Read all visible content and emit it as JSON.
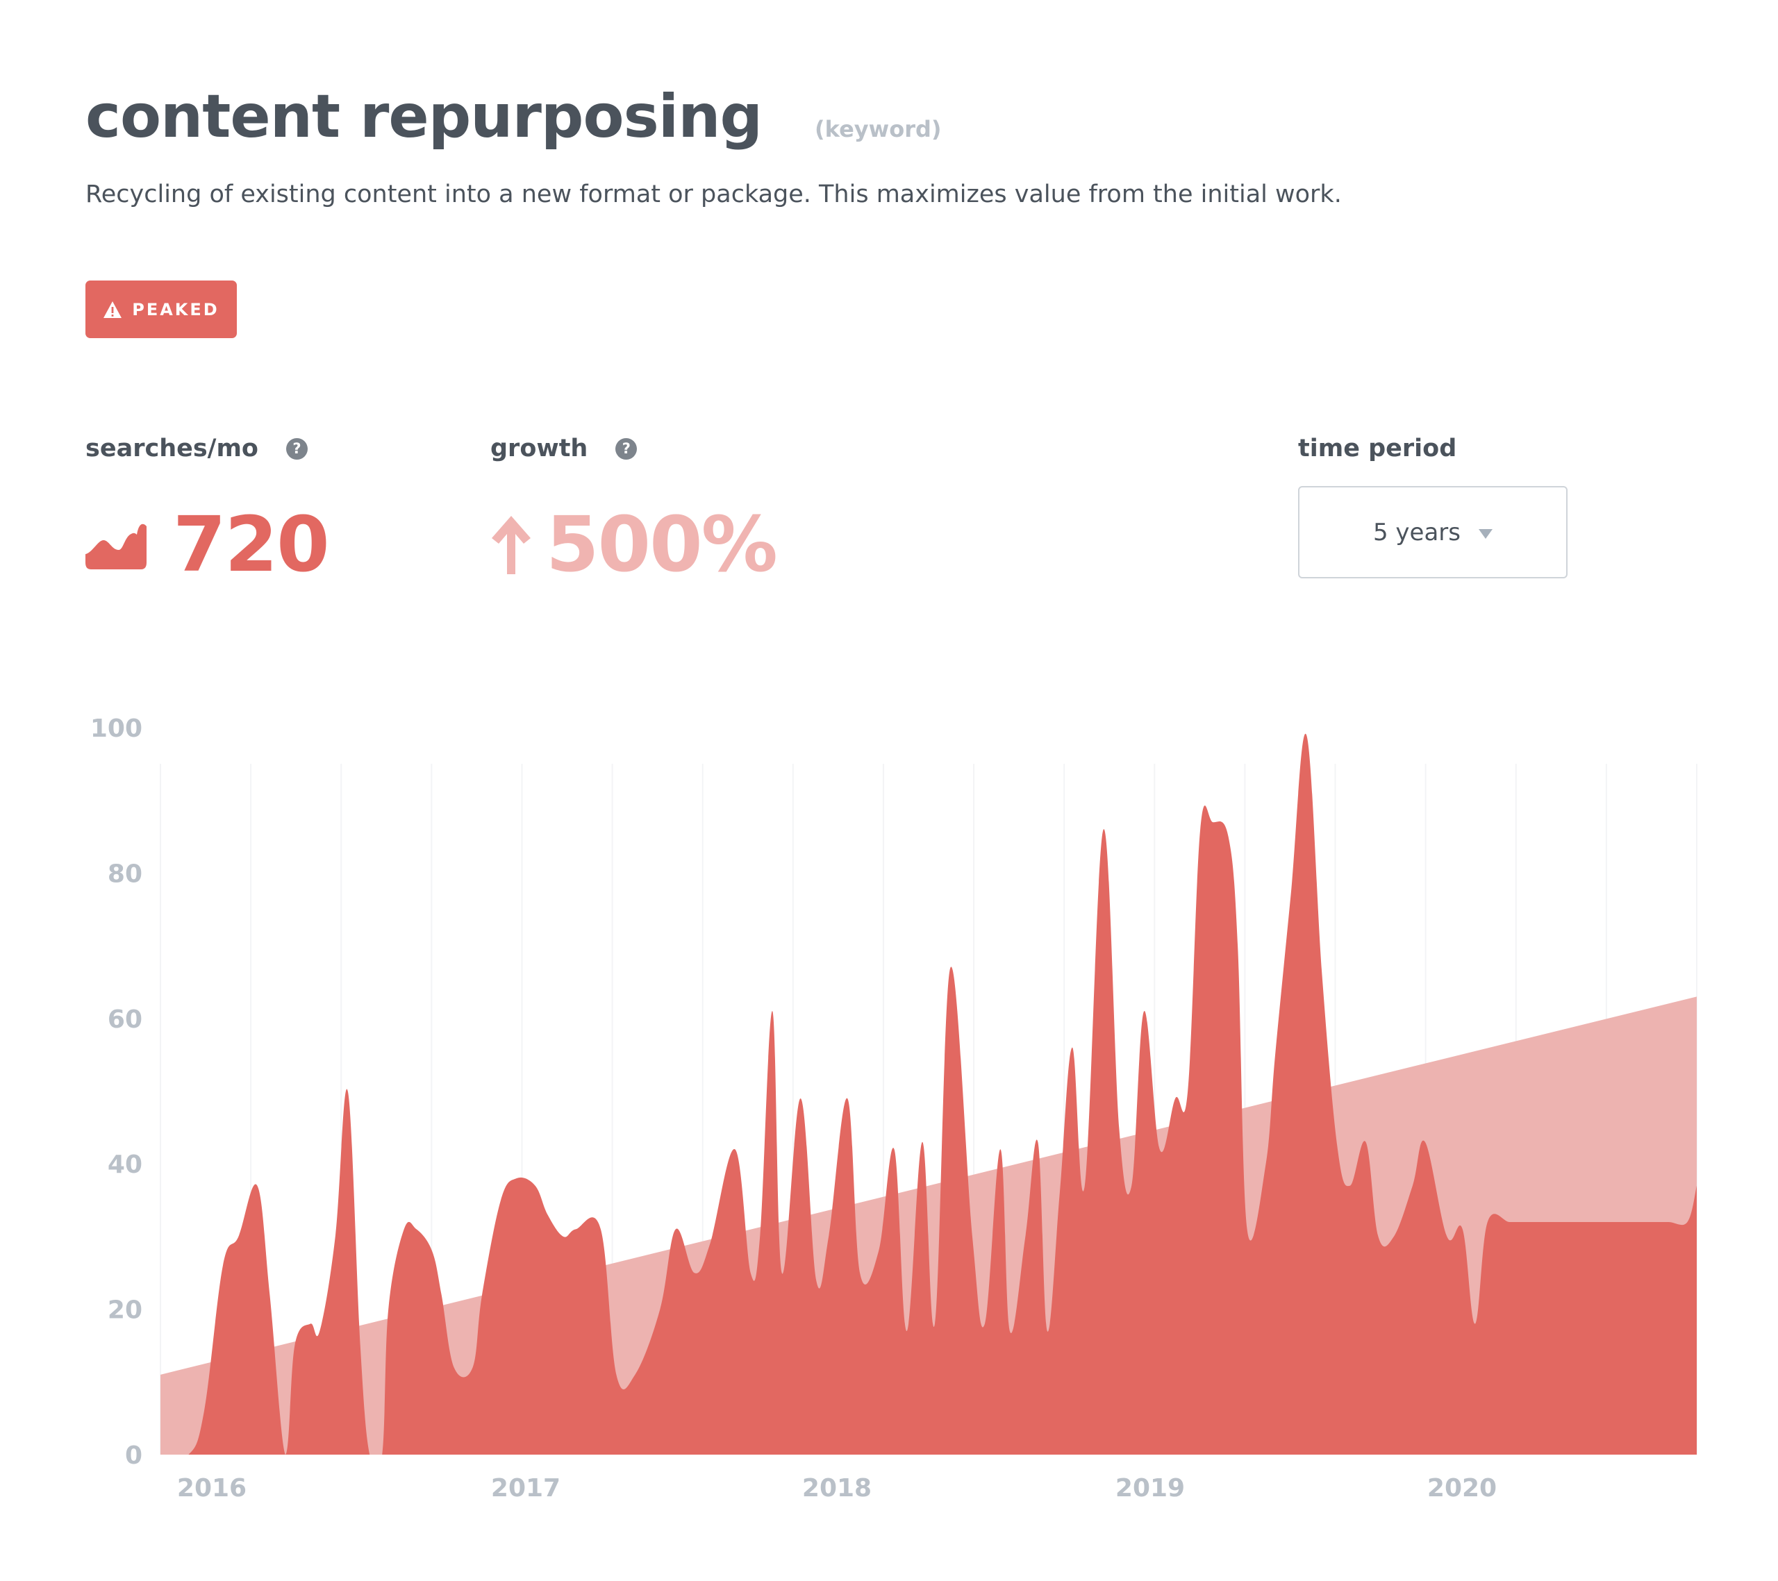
{
  "header": {
    "title": "content repurposing",
    "kind": "(keyword)",
    "description": "Recycling of existing content into a new format or package. This maximizes value from the initial work."
  },
  "badge": {
    "label": "PEAKED",
    "icon": "warning-icon",
    "color": "#e26861"
  },
  "stats": {
    "searches": {
      "label": "searches/mo",
      "value": "720",
      "icon": "volume-chart-icon"
    },
    "growth": {
      "label": "growth",
      "value": "500%",
      "icon": "arrow-up-icon"
    }
  },
  "time_period": {
    "label": "time period",
    "selected": "5 years"
  },
  "colors": {
    "series": "#e26861",
    "trend": "#edb3b0",
    "axis_text": "#b9c0c8"
  },
  "chart_data": {
    "type": "area",
    "x_unit": "year (decimal)",
    "xlim": [
      2015.85,
      2020.77
    ],
    "ylim": [
      0,
      100
    ],
    "yticks": [
      0,
      20,
      40,
      60,
      80,
      100
    ],
    "xticks": [
      "2016",
      "2017",
      "2018",
      "2019",
      "2020"
    ],
    "grid": "vertical",
    "legend": "none",
    "series": [
      {
        "x": [
          2015.85,
          2015.94,
          2015.99,
          2016.05,
          2016.1,
          2016.16,
          2016.2,
          2016.25,
          2016.28,
          2016.33,
          2016.36,
          2016.41,
          2016.45,
          2016.49,
          2016.52,
          2016.56,
          2016.58,
          2016.63,
          2016.67,
          2016.72,
          2016.75,
          2016.79,
          2016.85,
          2016.88,
          2016.94,
          2016.99,
          2017.05,
          2017.09,
          2017.14,
          2017.18,
          2017.26,
          2017.31,
          2017.37,
          2017.45,
          2017.5,
          2017.56,
          2017.61,
          2017.69,
          2017.74,
          2017.77,
          2017.81,
          2017.84,
          2017.9,
          2017.95,
          2017.99,
          2018.05,
          2018.09,
          2018.15,
          2018.2,
          2018.24,
          2018.29,
          2018.33,
          2018.38,
          2018.45,
          2018.49,
          2018.54,
          2018.57,
          2018.62,
          2018.66,
          2018.69,
          2018.73,
          2018.77,
          2018.81,
          2018.87,
          2018.92,
          2018.96,
          2019.0,
          2019.05,
          2019.1,
          2019.14,
          2019.18,
          2019.22,
          2019.27,
          2019.3,
          2019.33,
          2019.39,
          2019.42,
          2019.47,
          2019.52,
          2019.57,
          2019.62,
          2019.66,
          2019.71,
          2019.75,
          2019.8,
          2019.86,
          2019.9,
          2019.97,
          2020.02,
          2020.06,
          2020.1,
          2020.17,
          2020.22,
          2020.27,
          2020.32,
          2020.36,
          2020.43,
          2020.47,
          2020.52,
          2020.57,
          2020.62,
          2020.68,
          2020.74,
          2020.77
        ],
        "y": [
          0,
          0,
          6,
          26,
          30,
          37,
          22,
          0,
          15,
          18,
          17,
          30,
          50,
          15,
          0,
          0,
          20,
          31,
          31,
          28,
          22,
          12,
          12,
          22,
          35,
          38,
          37,
          33,
          30,
          31,
          31,
          11,
          11,
          20,
          31,
          25,
          29,
          42,
          25,
          30,
          61,
          25,
          49,
          24,
          30,
          49,
          25,
          28,
          42,
          17,
          43,
          18,
          67,
          30,
          18,
          42,
          17,
          30,
          43,
          17,
          36,
          56,
          37,
          86,
          45,
          37,
          61,
          42,
          49,
          50,
          86,
          87,
          85,
          70,
          31,
          40,
          55,
          77,
          99,
          66,
          42,
          37,
          43,
          30,
          30,
          37,
          43,
          30,
          31,
          18,
          32,
          32,
          32,
          32,
          32,
          32,
          32,
          32,
          32,
          32,
          32,
          32,
          32,
          37
        ],
        "name": ""
      },
      {
        "x": [
          2015.85,
          2020.77
        ],
        "y": [
          11,
          63
        ],
        "name": ""
      }
    ]
  }
}
